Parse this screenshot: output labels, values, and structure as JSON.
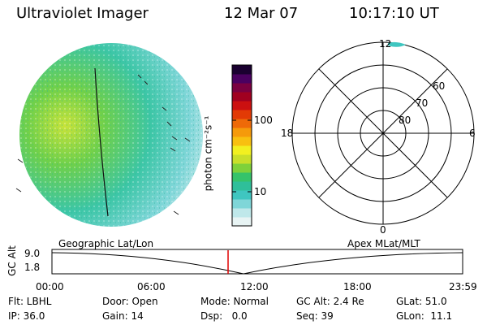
{
  "header": {
    "title": "Ultraviolet Imager",
    "date": "12 Mar 07",
    "time": "10:17:10 UT"
  },
  "colorbar": {
    "label": "photon cm⁻²s⁻¹",
    "ticks": [
      "100",
      "10"
    ],
    "colors": [
      "#e8f4f4",
      "#bfe8ea",
      "#7fd6d8",
      "#3fc6c0",
      "#2fbf9a",
      "#35c36a",
      "#7fd13a",
      "#c9df2a",
      "#f2f020",
      "#f8c010",
      "#f59a0b",
      "#ee6a08",
      "#e23a05",
      "#cc1010",
      "#a00020",
      "#7a0040",
      "#4a0060",
      "#1a0030"
    ]
  },
  "polar": {
    "lat_labels": [
      "60",
      "70",
      "80"
    ],
    "mlt_labels": {
      "top": "12",
      "bottom": "0",
      "left": "18",
      "right": "6"
    }
  },
  "track": {
    "left_label": "Geographic Lat/Lon",
    "right_label": "Apex MLat/MLT",
    "y_axis_label": "GC Alt",
    "y_ticks": [
      "9.0",
      "1.8"
    ],
    "x_ticks": [
      "00:00",
      "06:00",
      "12:00",
      "18:00",
      "23:59"
    ]
  },
  "info": {
    "row1": [
      "Flt: LBHL",
      "Door: Open",
      "Mode: Normal",
      "GC Alt: 2.4 Re",
      "GLat: 51.0"
    ],
    "row2": [
      "IP: 36.0",
      "Gain: 14",
      "Dsp:   0.0",
      "Seq: 39",
      "GLon:  11.1"
    ]
  }
}
